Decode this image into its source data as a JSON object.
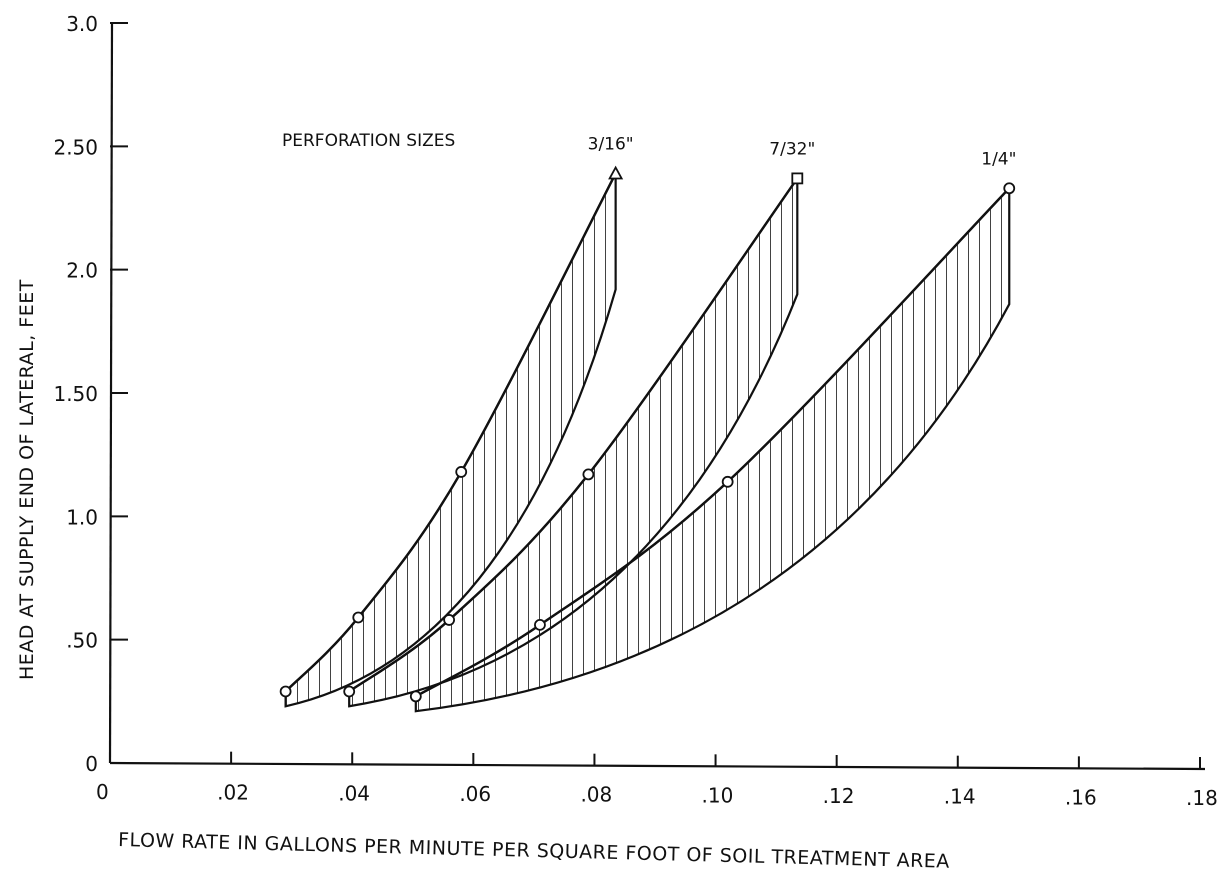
{
  "chart_data": {
    "type": "area",
    "title": "",
    "xlabel": "FLOW RATE IN GALLONS PER MINUTE PER SQUARE FOOT OF SOIL TREATMENT AREA",
    "ylabel": "HEAD AT SUPPLY END OF LATERAL, FEET",
    "annotation": "PERFORATION SIZES",
    "xlim": [
      0,
      0.18
    ],
    "ylim": [
      0,
      3.0
    ],
    "x_ticks": [
      0,
      0.02,
      0.04,
      0.06,
      0.08,
      0.1,
      0.12,
      0.14,
      0.16,
      0.18
    ],
    "x_tick_labels": [
      "0",
      ".02",
      ".04",
      ".06",
      ".08",
      ".10",
      ".12",
      ".14",
      ".16",
      ".18"
    ],
    "y_ticks": [
      0,
      0.5,
      1.0,
      1.5,
      2.0,
      2.5,
      3.0
    ],
    "y_tick_labels": [
      "0",
      ".50",
      "1.0",
      "1.50",
      "2.0",
      "2.50",
      "3.0"
    ],
    "grid": false,
    "series": [
      {
        "name": "3/16\"",
        "upper": {
          "x": [
            0.029,
            0.041,
            0.058,
            0.0835
          ],
          "y": [
            0.29,
            0.59,
            1.18,
            2.39
          ]
        },
        "lower_x_end": 0.0835,
        "lower_y_end": 1.92,
        "lower_y_start": 0.23
      },
      {
        "name": "7/32\"",
        "upper": {
          "x": [
            0.0395,
            0.056,
            0.079,
            0.1135
          ],
          "y": [
            0.29,
            0.58,
            1.17,
            2.37
          ]
        },
        "lower_x_end": 0.1135,
        "lower_y_end": 1.9,
        "lower_y_start": 0.23
      },
      {
        "name": "1/4\"",
        "upper": {
          "x": [
            0.0505,
            0.071,
            0.102,
            0.1485
          ],
          "y": [
            0.27,
            0.56,
            1.14,
            2.33
          ]
        },
        "lower_x_end": 0.1485,
        "lower_y_end": 1.86,
        "lower_y_start": 0.21
      }
    ]
  }
}
